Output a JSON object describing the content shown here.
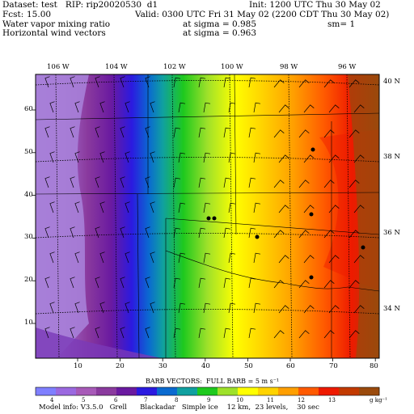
{
  "header": {
    "dataset_line": "Dataset: test   RIP: rip20020530  d1",
    "init_line": "Init: 1200 UTC Thu 30 May 02",
    "fcst_label": "Fcst:",
    "fcst_value": "15.00",
    "valid_line": "Valid: 0300 UTC Fri 31 May 02 (2200 CDT Thu 30 May 02)",
    "field1_name": "Water vapor mixing ratio",
    "field1_level": "at sigma = 0.985",
    "field1_extra": "sm= 1",
    "field2_name": "Horizontal wind vectors",
    "field2_level": "at sigma = 0.963"
  },
  "map": {
    "top_longitude_labels": [
      "106 W",
      "104 W",
      "102 W",
      "100 W",
      "98 W",
      "96 W"
    ],
    "right_latitude_labels": [
      "40 N",
      "38 N",
      "36 N",
      "34 N"
    ],
    "left_grid_labels": [
      "60",
      "50",
      "40",
      "30",
      "20",
      "10"
    ],
    "bottom_grid_labels": [
      "10",
      "20",
      "30",
      "40",
      "50",
      "60",
      "70",
      "80"
    ]
  },
  "barbs_note": "BARB VECTORS:  FULL BARB = 5 m s⁻¹",
  "colorbar": {
    "tick_labels": [
      "4",
      "5",
      "6",
      "7",
      "8",
      "9",
      "10",
      "11",
      "12",
      "13"
    ],
    "units": "g kg⁻¹",
    "colors": [
      "#7f7fff",
      "#9b69e0",
      "#a75ab8",
      "#8a3a9e",
      "#6a1aa0",
      "#2b1ae0",
      "#0a6ad0",
      "#10a0a0",
      "#1ec91e",
      "#9ee12a",
      "#ffff00",
      "#ffd300",
      "#ff9f00",
      "#ff5a00",
      "#ee1a00",
      "#c23a00",
      "#9a4a0c"
    ]
  },
  "footer": "Model info: V3.5.0   Grell      Blackadar   Simple ice    12 km,  23 levels,    30 sec"
}
